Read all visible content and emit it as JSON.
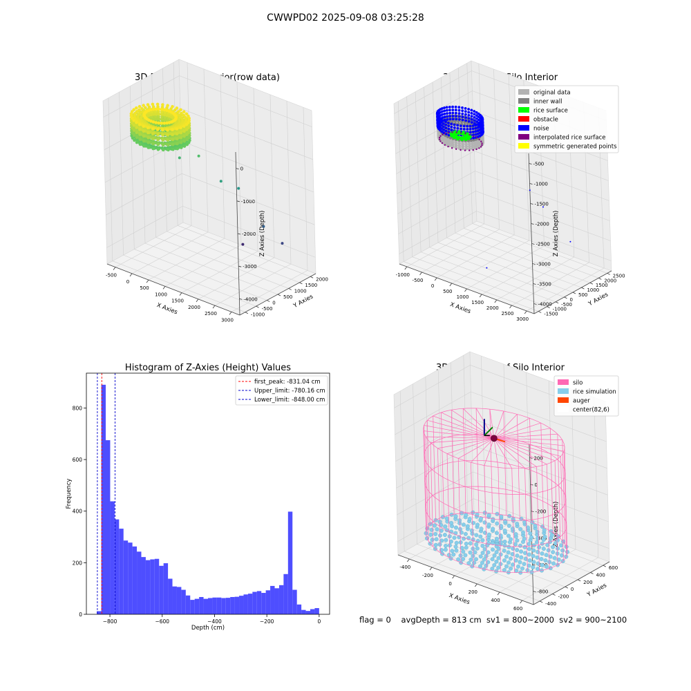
{
  "figure": {
    "suptitle": "CWWPD02 2025-09-08 03:25:28",
    "status_line": "flag = 0    avgDepth = 813 cm  sv1 = 800~2000  sv2 = 900~2100"
  },
  "chart_data": [
    {
      "type": "scatter",
      "title": "3D Plot of Silo Interior(row data)",
      "xlabel": "X Axies",
      "ylabel": "Y Axies",
      "zlabel": "Z Axies (Depth)",
      "x_ticks": [
        "-500",
        "0",
        "500",
        "1000",
        "1500",
        "2000",
        "2500",
        "3000"
      ],
      "y_ticks": [
        "-1000",
        "-500",
        "0",
        "500",
        "1000",
        "1500",
        "2000"
      ],
      "z_ticks": [
        "0",
        "-1000",
        "-2000",
        "-3000",
        "-4000"
      ],
      "xlim": [
        -800,
        3100
      ],
      "ylim": [
        -1000,
        2200
      ],
      "zlim": [
        -4400,
        200
      ],
      "colormap": "viridis (by depth)",
      "cluster": {
        "center_x": 100,
        "center_y": 100,
        "z_range": [
          -1000,
          -300
        ],
        "approx_radius": 700
      },
      "outliers": [
        {
          "x": 1000,
          "y": 400,
          "z": -1200
        },
        {
          "x": 1500,
          "y": 600,
          "z": -1800
        },
        {
          "x": 1800,
          "y": 900,
          "z": -2000
        },
        {
          "x": 2300,
          "y": 1200,
          "z": -3000
        },
        {
          "x": 2700,
          "y": 1400,
          "z": -3400
        },
        {
          "x": 1600,
          "y": 1300,
          "z": -3800
        },
        {
          "x": 500,
          "y": 300,
          "z": -1400
        }
      ]
    },
    {
      "type": "scatter",
      "title": "3D classify of Silo Interior",
      "xlabel": "X Axies",
      "ylabel": "Y Axies",
      "zlabel": "Z Axies (Depth)",
      "x_ticks": [
        "-1000",
        "-500",
        "0",
        "500",
        "1000",
        "1500",
        "2000",
        "2500",
        "3000"
      ],
      "y_ticks": [
        "-1500",
        "-1000",
        "-500",
        "0",
        "500",
        "1000",
        "1500",
        "2000",
        "2500"
      ],
      "z_ticks": [
        "-500",
        "-1000",
        "-1500",
        "-2000",
        "-2500",
        "-3000",
        "-3500",
        "-4000"
      ],
      "xlim": [
        -1200,
        3200
      ],
      "ylim": [
        -1600,
        2700
      ],
      "zlim": [
        -4200,
        0
      ],
      "legend_position": "top-right",
      "legend": [
        {
          "name": "original data",
          "color": "#b3b3b3"
        },
        {
          "name": "inner wall",
          "color": "#808080"
        },
        {
          "name": "rice surface",
          "color": "#00ff00"
        },
        {
          "name": "obstacle",
          "color": "#ff0000"
        },
        {
          "name": "noise",
          "color": "#0000ff"
        },
        {
          "name": "interpolated rice surface",
          "color": "#800080"
        },
        {
          "name": "symmetric generated points",
          "color": "#ffff00"
        }
      ]
    },
    {
      "type": "bar",
      "title": "Histogram of Z-Axies (Height) Values",
      "xlabel": "Depth (cm)",
      "ylabel": "Frequency",
      "xlim": [
        -890,
        40
      ],
      "ylim": [
        0,
        935
      ],
      "x_ticks": [
        -800,
        -600,
        -400,
        -200,
        0
      ],
      "y_ticks": [
        0,
        200,
        400,
        600,
        800
      ],
      "bin_start": -850,
      "bin_width": 17,
      "bar_color": "#4444ff",
      "values": [
        12,
        890,
        675,
        438,
        368,
        332,
        286,
        278,
        263,
        243,
        222,
        210,
        213,
        215,
        188,
        198,
        138,
        108,
        106,
        95,
        73,
        56,
        60,
        67,
        60,
        63,
        65,
        65,
        63,
        64,
        67,
        68,
        72,
        77,
        80,
        87,
        90,
        83,
        93,
        110,
        101,
        113,
        156,
        398,
        95,
        38,
        17,
        13,
        20,
        24
      ],
      "vlines": [
        {
          "label": "first_peak: -831.04 cm",
          "x": -831.04,
          "color": "#ff0000"
        },
        {
          "label": "Upper_limit: -780.16 cm",
          "x": -780.16,
          "color": "#0000cc"
        },
        {
          "label": "Lower_limit: -848.00 cm",
          "x": -848.0,
          "color": "#0000cc"
        }
      ],
      "legend_position": "top-right"
    },
    {
      "type": "scatter",
      "title": "3D simulation of Silo Interior",
      "xlabel": "X Axies",
      "ylabel": "Y Axies",
      "zlabel": "Z Axies (Depth)",
      "x_ticks": [
        "-400",
        "-200",
        "0",
        "200",
        "400",
        "600"
      ],
      "y_ticks": [
        "-400",
        "-200",
        "0",
        "200",
        "400",
        "600"
      ],
      "z_ticks": [
        "200",
        "0",
        "-200",
        "-400",
        "-600",
        "-800"
      ],
      "xlim": [
        -500,
        700
      ],
      "ylim": [
        -500,
        650
      ],
      "zlim": [
        -950,
        300
      ],
      "legend_position": "top-right",
      "legend": [
        {
          "name": "silo",
          "color": "#ff69b4"
        },
        {
          "name": "rice simulation",
          "color": "#87ceeb"
        },
        {
          "name": "auger",
          "color": "#ff4500"
        },
        {
          "name": "center(82,6)",
          "color": "#ffffff"
        }
      ],
      "silo": {
        "center_x": 82,
        "center_y": 6,
        "radius": 540,
        "z_top": 0,
        "z_bottom": -813
      },
      "rice_surface_depth": -813,
      "center": {
        "x": 82,
        "y": 6
      }
    }
  ]
}
